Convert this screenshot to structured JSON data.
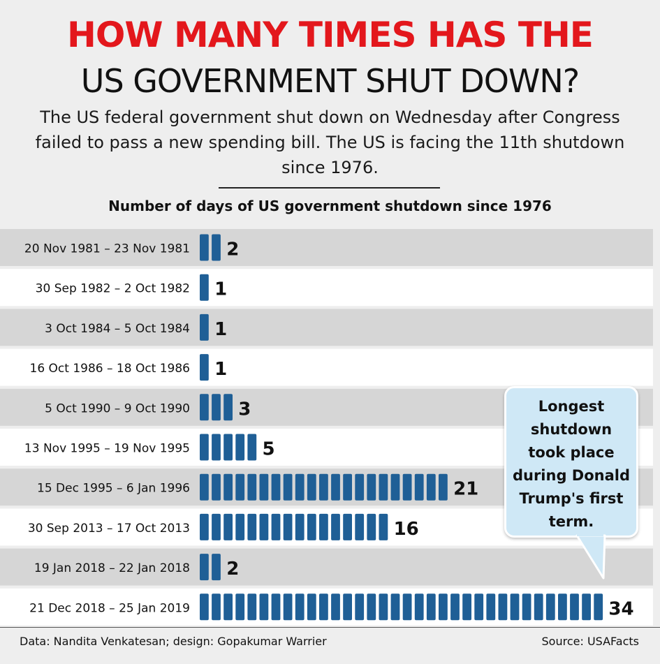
{
  "header": {
    "title_line1": "HOW MANY TIMES HAS THE",
    "title_line2": "US GOVERNMENT SHUT DOWN?",
    "subtitle": "The US federal government shut down on Wednesday after Congress failed to pass a new spending bill. The US is facing the 11th shutdown since 1976."
  },
  "callout": {
    "text": "Longest shutdown took place during Donald Trump's first term."
  },
  "footer": {
    "credit": "Data: Nandita Venkatesan; design: Gopakumar Warrier",
    "source": "Source: USAFacts"
  },
  "colors": {
    "title_red": "#e3171c",
    "bar_blue": "#1f5f96",
    "row_shade": "#d6d6d6",
    "row_light": "#ffffff"
  },
  "chart_data": {
    "type": "bar",
    "orientation": "horizontal",
    "title": "Number of days of US government shutdown since 1976",
    "categories": [
      "20 Nov 1981 – 23 Nov 1981",
      "30 Sep 1982 –  2 Oct 1982",
      "3 Oct 1984 –  5 Oct 1984",
      "16 Oct 1986 – 18 Oct 1986",
      "5 Oct 1990 – 9 Oct 1990",
      "13 Nov 1995 – 19 Nov 1995",
      "15 Dec 1995 – 6 Jan 1996",
      "30 Sep 2013 – 17 Oct 2013",
      "19 Jan 2018 – 22 Jan 2018",
      "21 Dec 2018 – 25 Jan 2019"
    ],
    "values": [
      2,
      1,
      1,
      1,
      3,
      5,
      21,
      16,
      2,
      34
    ],
    "value_labels": [
      "2",
      "1",
      "1",
      "1",
      "3",
      "5",
      "21",
      "16",
      "2",
      "34"
    ],
    "unit": "days",
    "grid": false,
    "legend": "none"
  }
}
